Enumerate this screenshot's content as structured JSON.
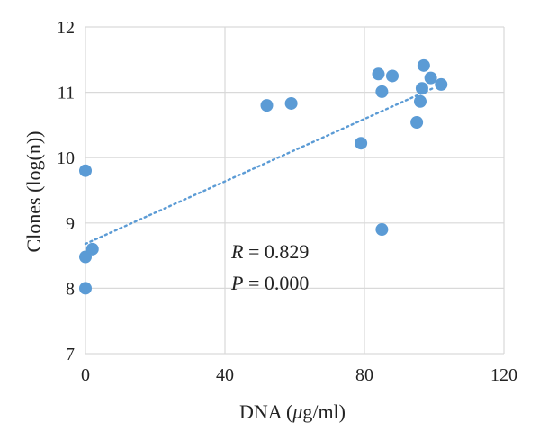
{
  "chart_data": {
    "type": "scatter",
    "title": "",
    "xlabel": {
      "pre": "DNA (",
      "italic": "μ",
      "post": "g/ml)"
    },
    "ylabel": "Clones (log(n))",
    "xlim": [
      0,
      120
    ],
    "ylim": [
      7,
      12
    ],
    "xticks": [
      0,
      40,
      80,
      120
    ],
    "yticks": [
      7,
      8,
      9,
      10,
      11,
      12
    ],
    "grid": true,
    "marker_color": "#5b9bd5",
    "trendline_color": "#5b9bd5",
    "trendline": {
      "style": "dotted",
      "x": [
        0,
        100
      ],
      "y": [
        8.68,
        11.07
      ]
    },
    "annotations": {
      "r_symbol": "R",
      "r_value": " = 0.829",
      "p_symbol": "P",
      "p_value": " = 0.000"
    },
    "series": [
      {
        "points": [
          [
            0,
            9.8
          ],
          [
            0,
            8.48
          ],
          [
            0,
            8.0
          ],
          [
            2,
            8.6
          ],
          [
            52,
            10.8
          ],
          [
            59,
            10.83
          ],
          [
            79,
            10.22
          ],
          [
            84,
            11.28
          ],
          [
            85,
            11.01
          ],
          [
            85,
            8.9
          ],
          [
            88,
            11.25
          ],
          [
            95,
            10.54
          ],
          [
            96,
            10.86
          ],
          [
            96.5,
            11.06
          ],
          [
            97,
            11.41
          ],
          [
            99,
            11.22
          ],
          [
            102,
            11.12
          ]
        ]
      }
    ]
  }
}
